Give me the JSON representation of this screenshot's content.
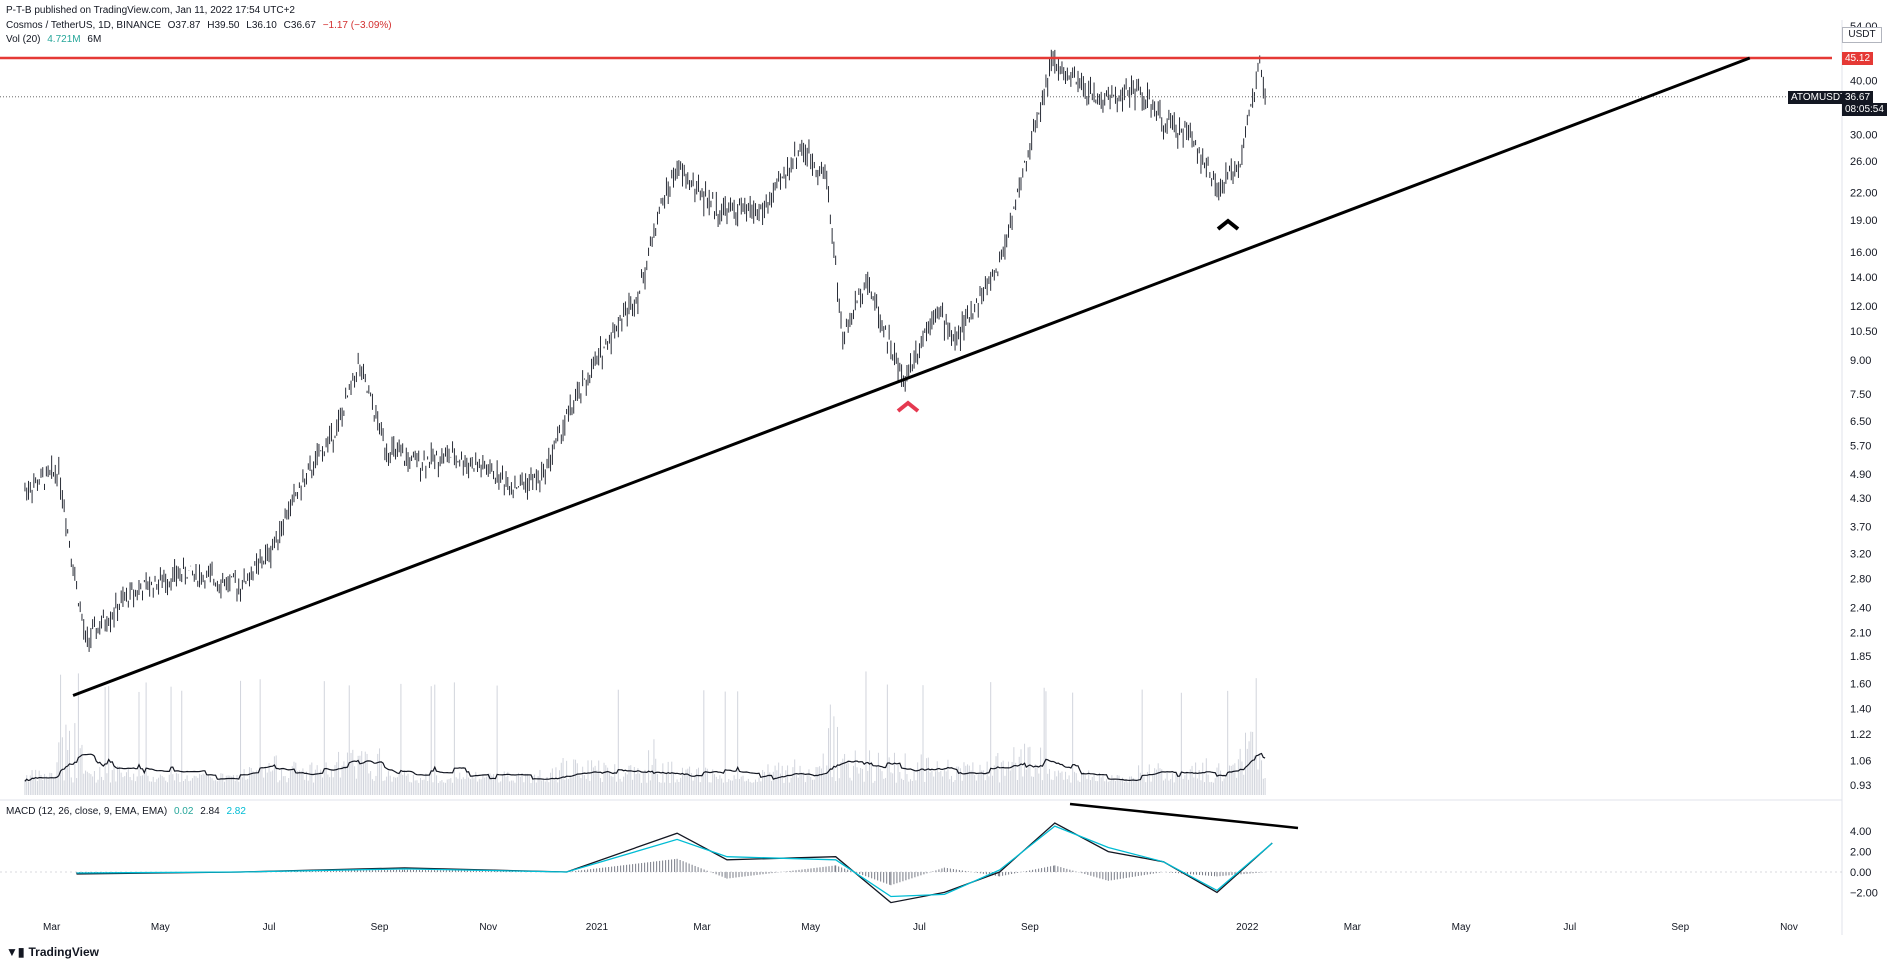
{
  "publisher": "P-T-B published on TradingView.com, Jan 11, 2022 17:54 UTC+2",
  "legend": {
    "symbol": "Cosmos / TetherUS, 1D, BINANCE",
    "open": "O37.87",
    "high": "H39.50",
    "low": "L36.10",
    "close": "C36.67",
    "change": "−1.17 (−3.09%)",
    "vol_label": "Vol (20)",
    "vol_value": "4.721M",
    "vol_ma": "6M",
    "macd_label": "MACD (12, 26, close, 9, EMA, EMA)",
    "macd_hist": "0.02",
    "macd_line": "2.84",
    "macd_signal": "2.82"
  },
  "price_axis": {
    "currency": "USDT",
    "ticks": [
      "54.00",
      "40.00",
      "36.00",
      "30.00",
      "26.00",
      "22.00",
      "19.00",
      "16.00",
      "14.00",
      "12.00",
      "10.50",
      "9.00",
      "7.50",
      "6.50",
      "5.70",
      "4.90",
      "4.30",
      "3.70",
      "3.20",
      "2.80",
      "2.40",
      "2.10",
      "1.85",
      "1.60",
      "1.40",
      "1.22",
      "1.06",
      "0.93"
    ],
    "resistance_label": "45.12",
    "symbol_badge": "ATOMUSDT",
    "last_price": "36.67",
    "countdown": "08:05:54"
  },
  "macd_axis": {
    "ticks": [
      "4.00",
      "2.00",
      "0.00",
      "−2.00"
    ]
  },
  "time_axis": [
    "Mar",
    "May",
    "Jul",
    "Sep",
    "Nov",
    "2021",
    "Mar",
    "May",
    "Jul",
    "Sep",
    "2022",
    "Mar",
    "May",
    "Jul",
    "Sep",
    "Nov"
  ],
  "footer": {
    "brand": "TradingView",
    "logo": "tradingview-logo"
  },
  "colors": {
    "resistance": "#e53935",
    "trendline": "#000000",
    "candles": "#131722",
    "volume": "#d1d4dc",
    "macd": "#131722",
    "signal": "#00bcd4",
    "up_marker": "#e53950"
  },
  "chart_data": {
    "type": "line",
    "title": "Cosmos / TetherUS, 1D, BINANCE",
    "scale": "log",
    "x": [
      "2020-02-15",
      "2020-03-05",
      "2020-03-12",
      "2020-03-20",
      "2020-04-15",
      "2020-05-15",
      "2020-06-15",
      "2020-07-01",
      "2020-07-15",
      "2020-08-10",
      "2020-08-20",
      "2020-09-05",
      "2020-09-20",
      "2020-10-10",
      "2020-11-01",
      "2020-11-15",
      "2020-12-01",
      "2020-12-15",
      "2021-01-10",
      "2021-01-25",
      "2021-02-05",
      "2021-02-15",
      "2021-03-10",
      "2021-04-05",
      "2021-04-25",
      "2021-05-10",
      "2021-05-19",
      "2021-06-01",
      "2021-06-22",
      "2021-07-10",
      "2021-07-21",
      "2021-08-15",
      "2021-09-01",
      "2021-09-13",
      "2021-09-25",
      "2021-10-10",
      "2021-11-01",
      "2021-11-15",
      "2021-12-01",
      "2021-12-15",
      "2021-12-28",
      "2022-01-08",
      "2022-01-11"
    ],
    "close": [
      4.5,
      5.0,
      3.2,
      2.0,
      2.6,
      2.9,
      2.7,
      3.2,
      4.3,
      6.5,
      8.8,
      5.6,
      5.2,
      5.4,
      5.0,
      4.6,
      4.8,
      6.6,
      10.5,
      13.0,
      20.0,
      25.0,
      20.0,
      20.0,
      28.0,
      24.0,
      10.0,
      14.0,
      8.0,
      12.0,
      10.0,
      15.0,
      28.0,
      44.0,
      40.0,
      36.0,
      38.0,
      32.0,
      30.0,
      22.0,
      26.0,
      44.0,
      36.67
    ],
    "resistance": 45.12,
    "trendline": {
      "start": {
        "x": "2020-03-13",
        "y": 1.5
      },
      "end": {
        "x": "2022-10-10",
        "y": 45.12
      }
    },
    "volume_ma_series": {
      "name": "Vol (20)"
    },
    "macd": {
      "x": [
        "2020-03",
        "2020-06",
        "2020-09",
        "2020-12",
        "2021-02",
        "2021-03",
        "2021-05",
        "2021-06",
        "2021-07",
        "2021-08",
        "2021-09",
        "2021-10",
        "2021-11",
        "2021-12",
        "2022-01"
      ],
      "macd": [
        -0.2,
        0.0,
        0.4,
        0.0,
        3.8,
        1.2,
        1.5,
        -3.0,
        -2.0,
        0.0,
        4.8,
        2.0,
        1.0,
        -2.0,
        2.84
      ],
      "signal": [
        -0.1,
        0.0,
        0.3,
        0.0,
        3.2,
        1.5,
        1.2,
        -2.4,
        -2.2,
        0.2,
        4.5,
        2.4,
        1.0,
        -1.8,
        2.82
      ],
      "ylim": [
        -3,
        6
      ]
    }
  }
}
